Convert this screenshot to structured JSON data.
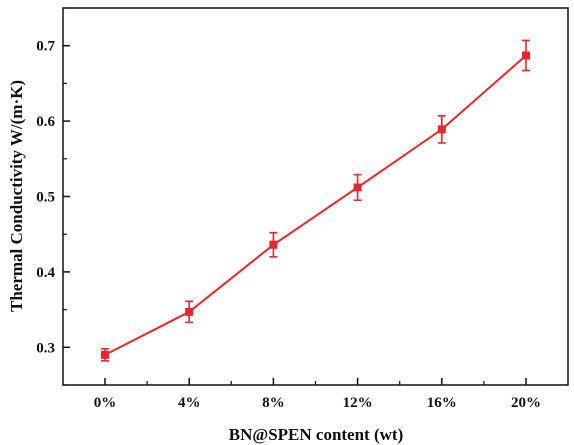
{
  "chart_data": {
    "type": "line",
    "title": "",
    "xlabel": "BN@SPEN content (wt)",
    "ylabel": "Thermal Conductivity W/(m·K)",
    "categories": [
      "0%",
      "4%",
      "8%",
      "12%",
      "16%",
      "20%"
    ],
    "ylim": [
      0.25,
      0.75
    ],
    "yticks": [
      "0.3",
      "0.4",
      "0.5",
      "0.6",
      "0.7"
    ],
    "grid": false,
    "legend": "none",
    "series": [
      {
        "values": [
          0.29,
          0.347,
          0.436,
          0.512,
          0.589,
          0.687
        ],
        "errors": [
          0.008,
          0.014,
          0.016,
          0.017,
          0.018,
          0.02
        ],
        "color": "#e8262b",
        "marker": "square"
      }
    ]
  }
}
